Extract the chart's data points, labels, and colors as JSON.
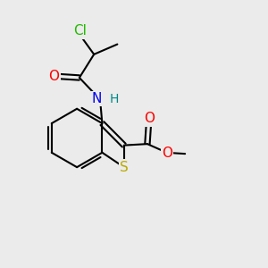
{
  "background_color": "#ebebeb",
  "bond_color": "#000000",
  "bond_width": 1.5,
  "atoms": {
    "Cl": {
      "color": "#22bb00"
    },
    "O": {
      "color": "#ff0000"
    },
    "N": {
      "color": "#0000ee"
    },
    "H": {
      "color": "#008888"
    },
    "S": {
      "color": "#bbaa00"
    }
  },
  "font_size": 11,
  "font_size_h": 10,
  "xlim": [
    0,
    10
  ],
  "ylim": [
    0,
    10
  ]
}
